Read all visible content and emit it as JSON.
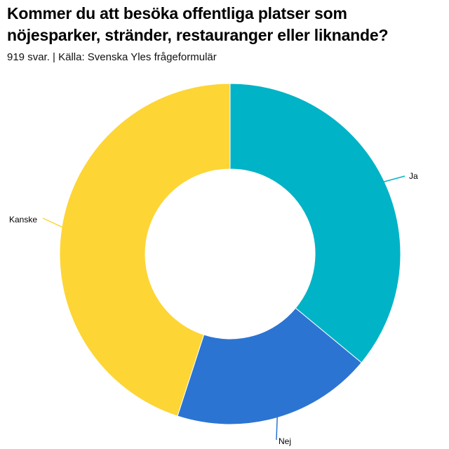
{
  "header": {
    "title": "Kommer du att besöka offentliga platser som nöjesparker, stränder, restauranger eller liknande?",
    "subtitle": "919 svar. | Källa: Svenska Yles frågeformulär"
  },
  "chart_data": {
    "type": "pie",
    "variant": "donut",
    "title": "Kommer du att besöka offentliga platser som nöjesparker, stränder, restauranger eller liknande?",
    "subtitle": "919 svar. | Källa: Svenska Yles frågeformulär",
    "categories": [
      "Ja",
      "Nej",
      "Kanske"
    ],
    "values": [
      36,
      19,
      45
    ],
    "colors": [
      "#00B3C7",
      "#2B74D2",
      "#FDD535"
    ],
    "start_angle": "12 o'clock",
    "direction": "clockwise"
  }
}
